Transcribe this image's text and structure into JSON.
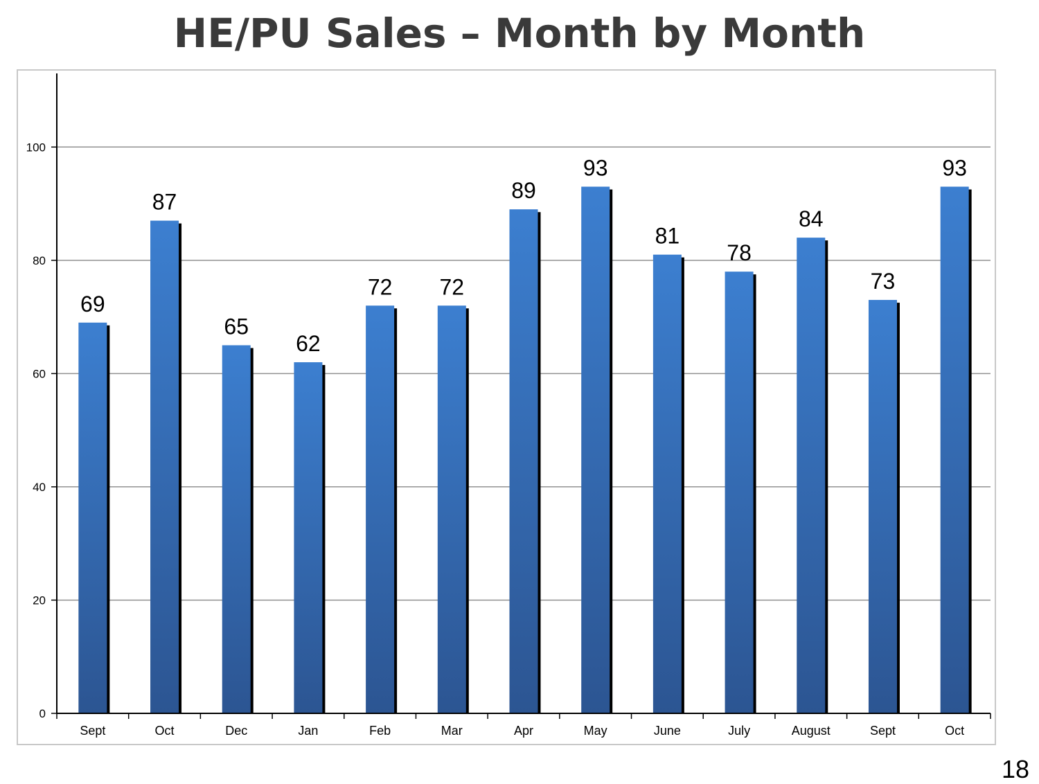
{
  "slide": {
    "title": "HE/PU Sales – Month by Month",
    "page_number": "18"
  },
  "colors": {
    "bar_top": "#3c7fd0",
    "bar_bottom": "#2c5592",
    "bar_shadow": "#000000",
    "gridline": "#909090",
    "axis": "#000000",
    "title_text": "#3a3a3a"
  },
  "chart_data": {
    "type": "bar",
    "title": "HE/PU Sales – Month by Month",
    "xlabel": "",
    "ylabel": "",
    "categories": [
      "Sept",
      "Oct",
      "Dec",
      "Jan",
      "Feb",
      "Mar",
      "Apr",
      "May",
      "June",
      "July",
      "August",
      "Sept",
      "Oct"
    ],
    "values": [
      69,
      87,
      65,
      62,
      72,
      72,
      89,
      93,
      81,
      78,
      84,
      73,
      93
    ],
    "data_labels": [
      "69",
      "87",
      "65",
      "62",
      "72",
      "72",
      "89",
      "93",
      "81",
      "78",
      "84",
      "73",
      "93"
    ],
    "ylim": [
      0,
      113
    ],
    "yticks": [
      0,
      20,
      40,
      60,
      80,
      100
    ],
    "ytick_labels": [
      "0",
      "20",
      "40",
      "60",
      "80",
      "100"
    ],
    "grid": true,
    "legend": "none"
  }
}
